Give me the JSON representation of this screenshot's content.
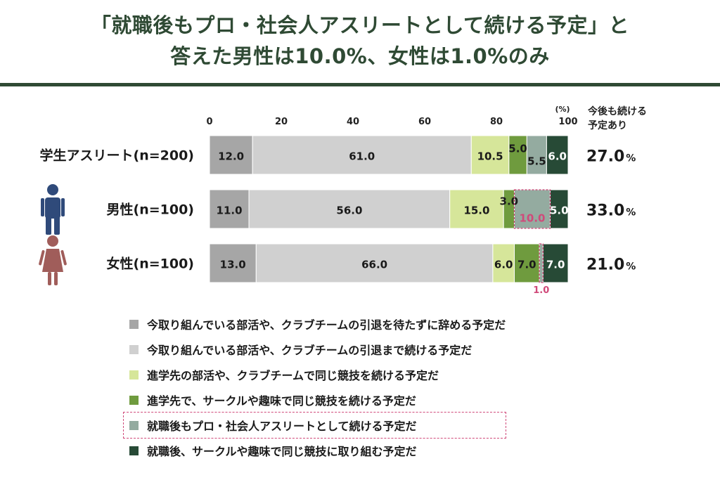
{
  "title": {
    "line1": "「就職後もプロ・社会人アスリートとして続ける予定」と",
    "line2": "答えた男性は10.0%、女性は1.0%のみ"
  },
  "chart_data": {
    "type": "bar",
    "orientation": "horizontal",
    "stacked": true,
    "xlim": [
      0,
      100
    ],
    "x_ticks": [
      "0",
      "20",
      "40",
      "60",
      "80",
      "100"
    ],
    "unit_label": "(%)",
    "categories": [
      "学生アスリート(n=200)",
      "男性(n=100)",
      "女性(n=100)"
    ],
    "series": [
      {
        "name": "今取り組んでいる部活や、クラブチームの引退を待たずに辞める予定だ",
        "color": "#a6a6a6",
        "values": [
          12.0,
          11.0,
          13.0
        ]
      },
      {
        "name": "今取り組んでいる部活や、クラブチームの引退まで続ける予定だ",
        "color": "#d0d0d0",
        "values": [
          61.0,
          56.0,
          66.0
        ]
      },
      {
        "name": "進学先の部活や、クラブチームで同じ競技を続ける予定だ",
        "color": "#d6e69a",
        "values": [
          10.5,
          15.0,
          6.0
        ]
      },
      {
        "name": "進学先で、サークルや趣味で同じ競技を続ける予定だ",
        "color": "#6f9b3e",
        "values": [
          5.0,
          3.0,
          7.0
        ]
      },
      {
        "name": "就職後もプロ・社会人アスリートとして続ける予定だ",
        "color": "#94aba0",
        "values": [
          5.5,
          10.0,
          1.0
        ]
      },
      {
        "name": "就職後、サークルや趣味で同じ競技に取り組む予定だ",
        "color": "#274a36",
        "values": [
          6.0,
          5.0,
          7.0
        ]
      }
    ],
    "value_labels": [
      [
        "12.0",
        "61.0",
        "10.5",
        "5.0",
        "5.5",
        "6.0"
      ],
      [
        "11.0",
        "56.0",
        "15.0",
        "3.0",
        "10.0",
        "5.0"
      ],
      [
        "13.0",
        "66.0",
        "6.0",
        "7.0",
        "1.0",
        "7.0"
      ]
    ],
    "side_header": "今後も続ける\n予定あり",
    "side_values": [
      "27.0",
      "33.0",
      "21.0"
    ],
    "side_unit": "%",
    "highlight_series_index": 4,
    "highlight_color": "#d04a7a",
    "legend_position": "bottom"
  },
  "icons": {
    "male": {
      "name": "male-person-icon",
      "color": "#2f4a7a"
    },
    "female": {
      "name": "female-person-icon",
      "color": "#a05d5a"
    }
  }
}
